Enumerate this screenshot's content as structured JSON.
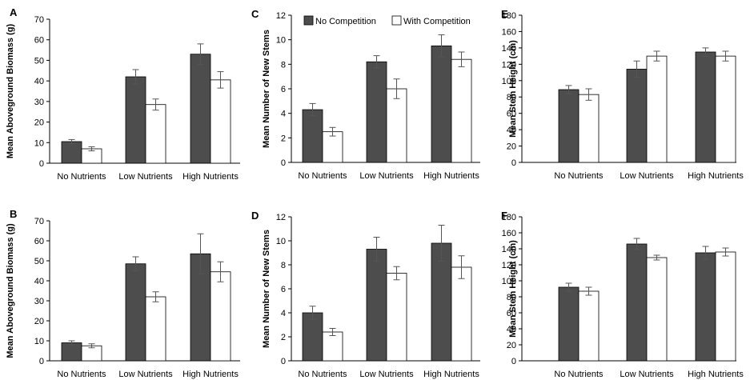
{
  "legend": {
    "series_a": "No Competition",
    "series_b": "With Competition"
  },
  "colors": {
    "series_a": "#4d4d4d",
    "series_b": "#ffffff",
    "stroke": "#000000",
    "error": "#555555"
  },
  "chart_data": [
    {
      "panel": "A",
      "type": "bar",
      "ylabel": "Mean Aboveground Biomass (g)",
      "ylim": [
        0,
        70
      ],
      "yticks": [
        0,
        10,
        20,
        30,
        40,
        50,
        60,
        70
      ],
      "categories": [
        "No Nutrients",
        "Low Nutrients",
        "High Nutrients"
      ],
      "series": [
        {
          "name": "No Competition",
          "values": [
            10.5,
            42,
            53
          ],
          "errors": [
            1,
            3.5,
            5
          ]
        },
        {
          "name": "With Competition",
          "values": [
            7,
            28.5,
            40.5
          ],
          "errors": [
            1,
            2.7,
            4
          ]
        }
      ]
    },
    {
      "panel": "B",
      "type": "bar",
      "ylabel": "Mean Aboveground Biomass (g)",
      "ylim": [
        0,
        70
      ],
      "yticks": [
        0,
        10,
        20,
        30,
        40,
        50,
        60,
        70
      ],
      "categories": [
        "No Nutrients",
        "Low Nutrients",
        "High Nutrients"
      ],
      "series": [
        {
          "name": "No Competition",
          "values": [
            9,
            48.5,
            53.5
          ],
          "errors": [
            1,
            3.5,
            10
          ]
        },
        {
          "name": "With Competition",
          "values": [
            7.5,
            32,
            44.5
          ],
          "errors": [
            1,
            2.5,
            5
          ]
        }
      ]
    },
    {
      "panel": "C",
      "type": "bar",
      "ylabel": "Mean Number of New Stems",
      "ylim": [
        0,
        12
      ],
      "yticks": [
        0,
        2,
        4,
        6,
        8,
        10,
        12
      ],
      "categories": [
        "No Nutrients",
        "Low Nutrients",
        "High Nutrients"
      ],
      "series": [
        {
          "name": "No Competition",
          "values": [
            4.3,
            8.2,
            9.5
          ],
          "errors": [
            0.5,
            0.5,
            0.9
          ]
        },
        {
          "name": "With Competition",
          "values": [
            2.5,
            6,
            8.4
          ],
          "errors": [
            0.35,
            0.8,
            0.6
          ]
        }
      ]
    },
    {
      "panel": "D",
      "type": "bar",
      "ylabel": "Mean Number of New Stems",
      "ylim": [
        0,
        12
      ],
      "yticks": [
        0,
        2,
        4,
        6,
        8,
        10,
        12
      ],
      "categories": [
        "No Nutrients",
        "Low Nutrients",
        "High Nutrients"
      ],
      "series": [
        {
          "name": "No Competition",
          "values": [
            4,
            9.3,
            9.8
          ],
          "errors": [
            0.55,
            1,
            1.5
          ]
        },
        {
          "name": "With Competition",
          "values": [
            2.4,
            7.3,
            7.8
          ],
          "errors": [
            0.3,
            0.55,
            0.95
          ]
        }
      ]
    },
    {
      "panel": "E",
      "type": "bar",
      "ylabel": "Mean Stem Height (cm)",
      "ylim": [
        0,
        180
      ],
      "yticks": [
        0,
        20,
        40,
        60,
        80,
        100,
        120,
        140,
        160,
        180
      ],
      "categories": [
        "No Nutrients",
        "Low Nutrients",
        "High Nutrients"
      ],
      "series": [
        {
          "name": "No Competition",
          "values": [
            89,
            114,
            135
          ],
          "errors": [
            5,
            10,
            5
          ]
        },
        {
          "name": "With Competition",
          "values": [
            83,
            130,
            130
          ],
          "errors": [
            7,
            6,
            6
          ]
        }
      ]
    },
    {
      "panel": "F",
      "type": "bar",
      "ylabel": "Mean Stem Height (cm)",
      "ylim": [
        0,
        180
      ],
      "yticks": [
        0,
        20,
        40,
        60,
        80,
        100,
        120,
        140,
        160,
        180
      ],
      "categories": [
        "No Nutrients",
        "Low Nutrients",
        "High Nutrients"
      ],
      "series": [
        {
          "name": "No Competition",
          "values": [
            92,
            146,
            135
          ],
          "errors": [
            5,
            7,
            8
          ]
        },
        {
          "name": "With Competition",
          "values": [
            87,
            129,
            136
          ],
          "errors": [
            5,
            3,
            5
          ]
        }
      ]
    }
  ]
}
